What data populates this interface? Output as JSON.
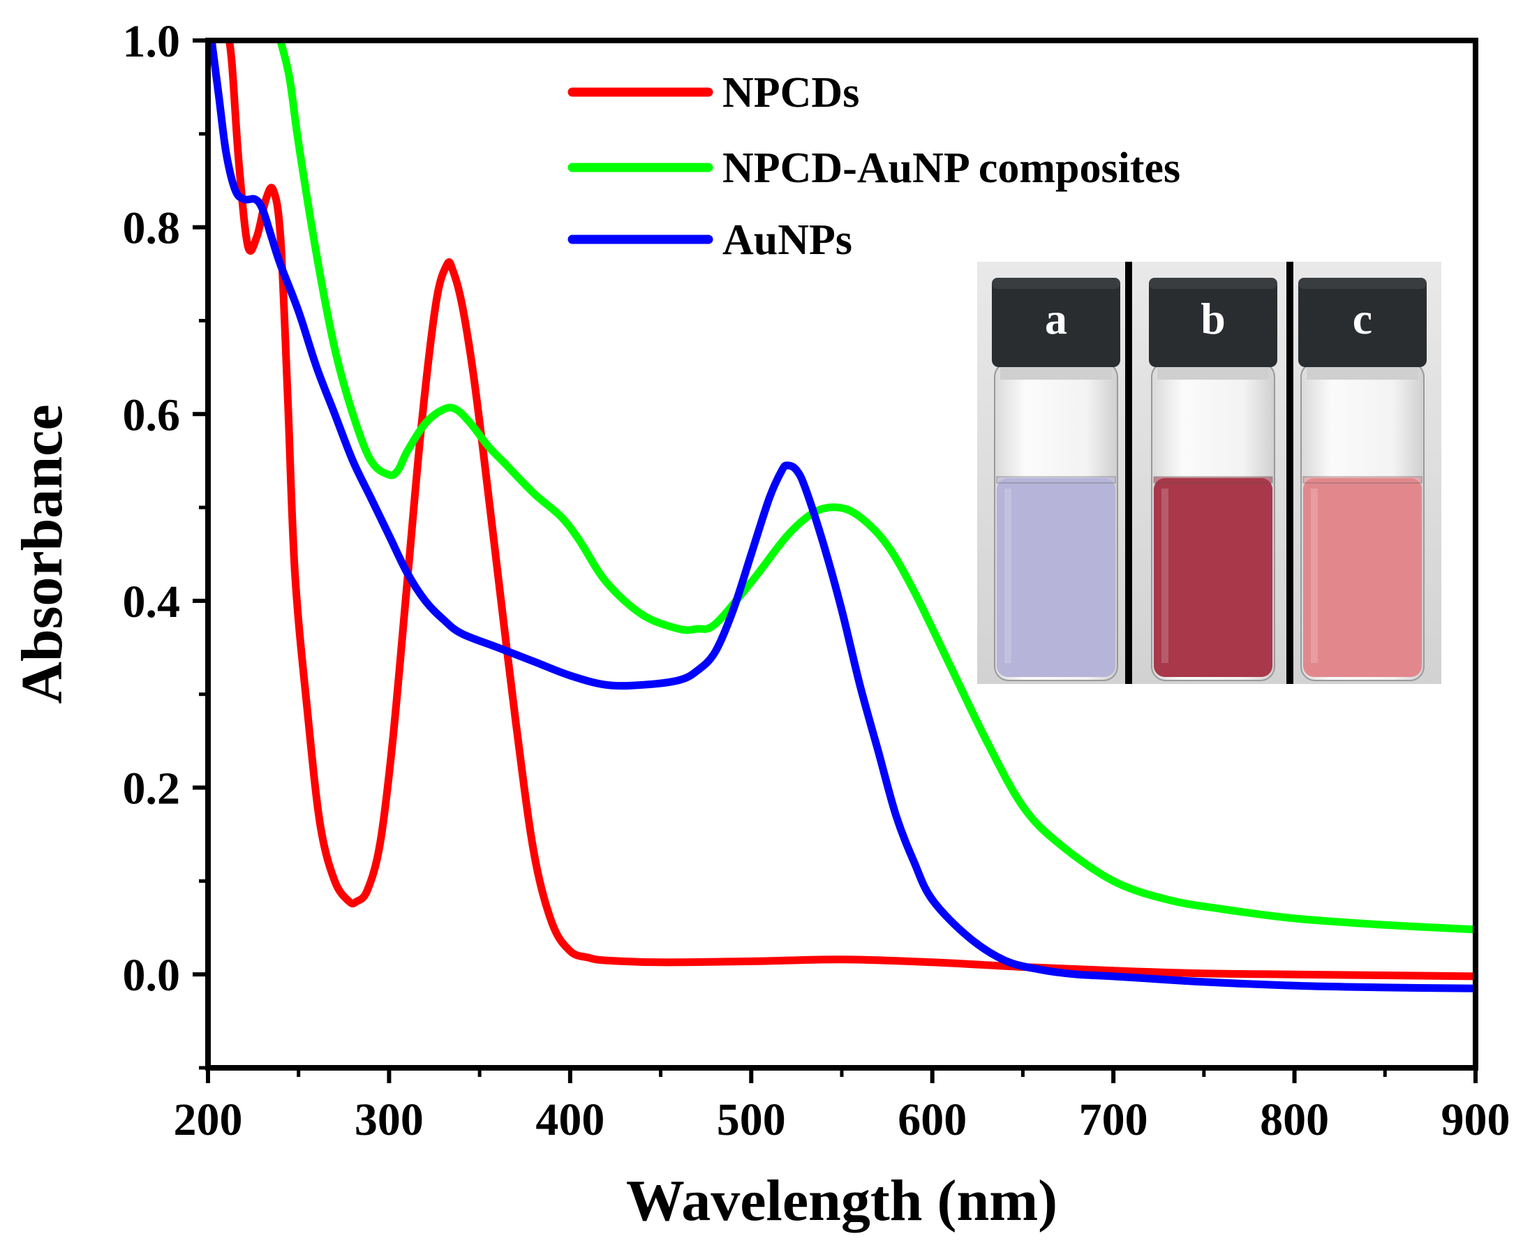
{
  "chart_data": {
    "type": "line",
    "title": "",
    "xlabel": "Wavelength (nm)",
    "ylabel": "Absorbance",
    "xlim": [
      200,
      900
    ],
    "ylim": [
      -0.1,
      1.0
    ],
    "xticks": [
      200,
      300,
      400,
      500,
      600,
      700,
      800,
      900
    ],
    "yticks": [
      "0.0",
      "0.2",
      "0.4",
      "0.6",
      "0.8",
      "1.0"
    ],
    "legend_position": "top-center",
    "series": [
      {
        "name": "NPCDs",
        "color": "#ff0000",
        "x": [
          210,
          213,
          217,
          222,
          227,
          232,
          236,
          240,
          244,
          248,
          255,
          262,
          270,
          278,
          282,
          288,
          295,
          302,
          310,
          318,
          326,
          332,
          335,
          340,
          346,
          352,
          360,
          370,
          380,
          390,
          400,
          410,
          420,
          450,
          500,
          550,
          600,
          650,
          700,
          750,
          800,
          850,
          900
        ],
        "y": [
          1.02,
          0.98,
          0.87,
          0.78,
          0.79,
          0.83,
          0.84,
          0.79,
          0.62,
          0.43,
          0.28,
          0.16,
          0.1,
          0.078,
          0.078,
          0.09,
          0.14,
          0.25,
          0.42,
          0.59,
          0.72,
          0.76,
          0.755,
          0.72,
          0.65,
          0.56,
          0.43,
          0.27,
          0.13,
          0.055,
          0.025,
          0.018,
          0.015,
          0.013,
          0.014,
          0.016,
          0.013,
          0.008,
          0.004,
          0.001,
          0.0,
          -0.001,
          -0.002
        ]
      },
      {
        "name": "NPCD-AuNP composites",
        "color": "#00ff00",
        "x": [
          240,
          245,
          250,
          260,
          270,
          280,
          290,
          300,
          305,
          310,
          320,
          330,
          337,
          345,
          355,
          365,
          380,
          395,
          405,
          420,
          440,
          460,
          470,
          480,
          500,
          520,
          535,
          548,
          560,
          575,
          590,
          610,
          630,
          650,
          670,
          700,
          730,
          760,
          800,
          850,
          900
        ],
        "y": [
          1.0,
          0.96,
          0.89,
          0.77,
          0.67,
          0.6,
          0.55,
          0.535,
          0.54,
          0.56,
          0.59,
          0.605,
          0.605,
          0.59,
          0.565,
          0.545,
          0.515,
          0.49,
          0.465,
          0.42,
          0.385,
          0.37,
          0.37,
          0.375,
          0.42,
          0.47,
          0.495,
          0.5,
          0.49,
          0.46,
          0.41,
          0.33,
          0.25,
          0.18,
          0.14,
          0.1,
          0.08,
          0.07,
          0.06,
          0.053,
          0.048
        ]
      },
      {
        "name": "AuNPs",
        "color": "#0000ff",
        "x": [
          202,
          206,
          210,
          215,
          220,
          226,
          230,
          235,
          240,
          250,
          260,
          270,
          280,
          290,
          300,
          310,
          320,
          330,
          340,
          360,
          380,
          400,
          420,
          440,
          460,
          470,
          480,
          490,
          500,
          510,
          517,
          520,
          525,
          530,
          540,
          550,
          560,
          570,
          580,
          590,
          600,
          620,
          640,
          660,
          680,
          700,
          750,
          800,
          850,
          900
        ],
        "y": [
          1.0,
          0.94,
          0.88,
          0.84,
          0.83,
          0.83,
          0.82,
          0.79,
          0.76,
          0.71,
          0.65,
          0.6,
          0.55,
          0.51,
          0.47,
          0.43,
          0.4,
          0.38,
          0.365,
          0.35,
          0.335,
          0.32,
          0.31,
          0.31,
          0.315,
          0.325,
          0.345,
          0.39,
          0.45,
          0.51,
          0.54,
          0.545,
          0.54,
          0.52,
          0.46,
          0.39,
          0.31,
          0.24,
          0.17,
          0.12,
          0.08,
          0.04,
          0.015,
          0.005,
          0.0,
          -0.002,
          -0.008,
          -0.012,
          -0.014,
          -0.015
        ]
      }
    ]
  },
  "inset": {
    "vials": [
      {
        "label": "a",
        "liquid_color": "#b6b4d8"
      },
      {
        "label": "b",
        "liquid_color": "#a8384a"
      },
      {
        "label": "c",
        "liquid_color": "#e2888d"
      }
    ]
  },
  "colors": {
    "axis": "#000000",
    "background": "#ffffff",
    "cap": "#2a2d30"
  }
}
